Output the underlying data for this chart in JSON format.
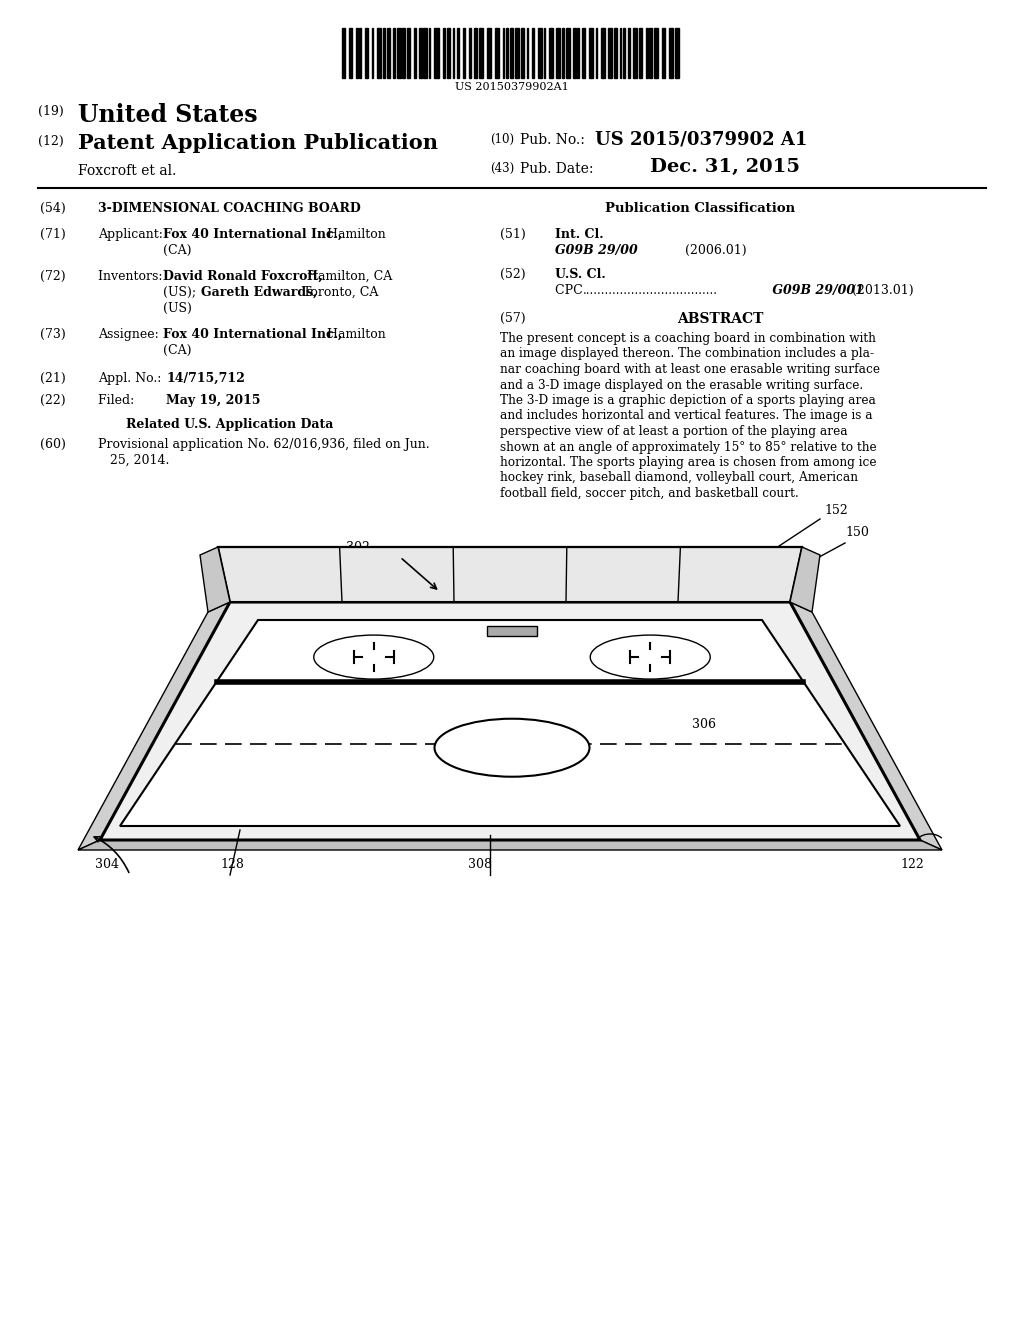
{
  "bg_color": "#ffffff",
  "barcode_text": "US 20150379902A1",
  "label_302": "302",
  "label_152": "152",
  "label_150": "150",
  "label_306": "306",
  "label_304": "304",
  "label_128": "128",
  "label_308": "308",
  "label_122": "122",
  "abstract_text": "The present concept is a coaching board in combination with\nan image displayed thereon. The combination includes a pla-\nnar coaching board with at least one erasable writing surface\nand a 3-D image displayed on the erasable writing surface.\nThe 3-D image is a graphic depiction of a sports playing area\nand includes horizontal and vertical features. The image is a\nperspective view of at least a portion of the playing area\nshown at an angle of approximately 15° to 85° relative to the\nhorizontal. The sports playing area is chosen from among ice\nhockey rink, baseball diamond, volleyball court, American\nfootball field, soccer pitch, and basketball court."
}
